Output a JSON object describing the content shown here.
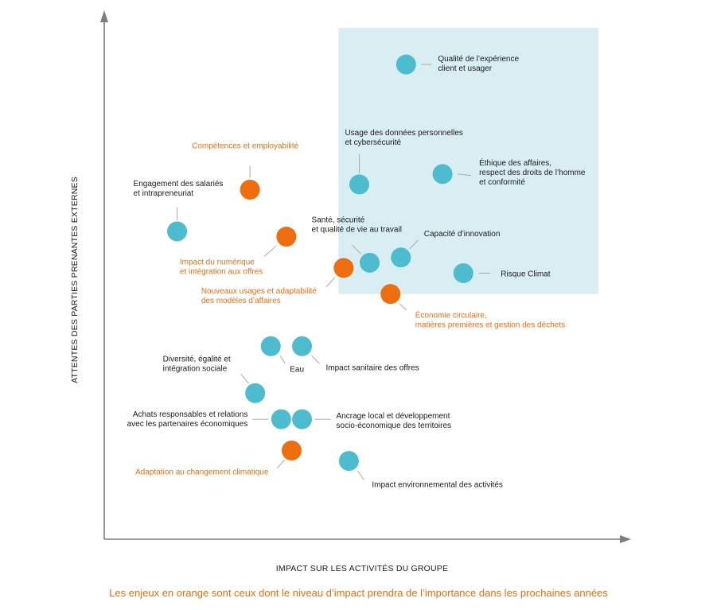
{
  "colors": {
    "current": "#4cbcce",
    "future": "#ed6d0f",
    "highlight": "#d9eef3",
    "axis": "#7d7d7d",
    "text": "#1a1a1a",
    "leader": "#aaaaaa"
  },
  "footnote": "Les enjeux en orange sont ceux dont le niveau d’impact prendra de l’importance dans les prochaines années",
  "chart_data": {
    "type": "scatter",
    "xlabel": "IMPACT SUR LES ACTIVITÉS DU GROUPE",
    "ylabel": "ATTENTES DES PARTIES PRENANTES EXTERNES",
    "xlim": [
      0,
      100
    ],
    "ylim": [
      0,
      100
    ],
    "grid": false,
    "highlight_zone": {
      "x": [
        45,
        95
      ],
      "y": [
        47,
        98
      ]
    },
    "points": [
      {
        "lines": [
          "Qualité de l’expérience",
          "client et usager"
        ],
        "x": 58,
        "y": 91,
        "color": "blue"
      },
      {
        "lines": [
          "Usage des données personnelles",
          "et cybersécurité"
        ],
        "x": 49,
        "y": 68,
        "color": "blue"
      },
      {
        "lines": [
          "Éthique des affaires,",
          "respect des droits de l’homme",
          "et conformité"
        ],
        "x": 65,
        "y": 70,
        "color": "blue"
      },
      {
        "lines": [
          "Compétences et employabilité"
        ],
        "x": 28,
        "y": 67,
        "color": "orange"
      },
      {
        "lines": [
          "Engagement des salariés",
          "et intrapreneuriat"
        ],
        "x": 14,
        "y": 59,
        "color": "blue"
      },
      {
        "lines": [
          "Impact du numérique",
          "et intégration aux offres"
        ],
        "x": 35,
        "y": 58,
        "color": "orange"
      },
      {
        "lines": [
          "Santé, sécurité",
          "et qualité de vie au travail"
        ],
        "x": 51,
        "y": 53,
        "color": "blue"
      },
      {
        "lines": [
          "Capacité d’innovation"
        ],
        "x": 57,
        "y": 54,
        "color": "blue"
      },
      {
        "lines": [
          "Risque Climat"
        ],
        "x": 69,
        "y": 51,
        "color": "blue"
      },
      {
        "lines": [
          "Nouveaux usages et adaptabilité",
          "des modèles d’affaires"
        ],
        "x": 46,
        "y": 52,
        "color": "orange"
      },
      {
        "lines": [
          "Économie circulaire,",
          "matières premières et gestion des déchets"
        ],
        "x": 55,
        "y": 47,
        "color": "orange"
      },
      {
        "lines": [
          "Eau"
        ],
        "x": 32,
        "y": 37,
        "color": "blue"
      },
      {
        "lines": [
          "Impact sanitaire des offres"
        ],
        "x": 38,
        "y": 37,
        "color": "blue"
      },
      {
        "lines": [
          "Diversité, égalité et",
          "intégration sociale"
        ],
        "x": 29,
        "y": 28,
        "color": "blue"
      },
      {
        "lines": [
          "Achats responsables et relations",
          "avec les partenaires économiques"
        ],
        "x": 34,
        "y": 23,
        "color": "blue"
      },
      {
        "lines": [
          "Ancrage local et développement",
          "socio-économique des territoires"
        ],
        "x": 38,
        "y": 23,
        "color": "blue"
      },
      {
        "lines": [
          "Adaptation au changement climatique"
        ],
        "x": 36,
        "y": 17,
        "color": "orange"
      },
      {
        "lines": [
          "Impact environnemental des activités"
        ],
        "x": 47,
        "y": 15,
        "color": "blue"
      }
    ]
  }
}
